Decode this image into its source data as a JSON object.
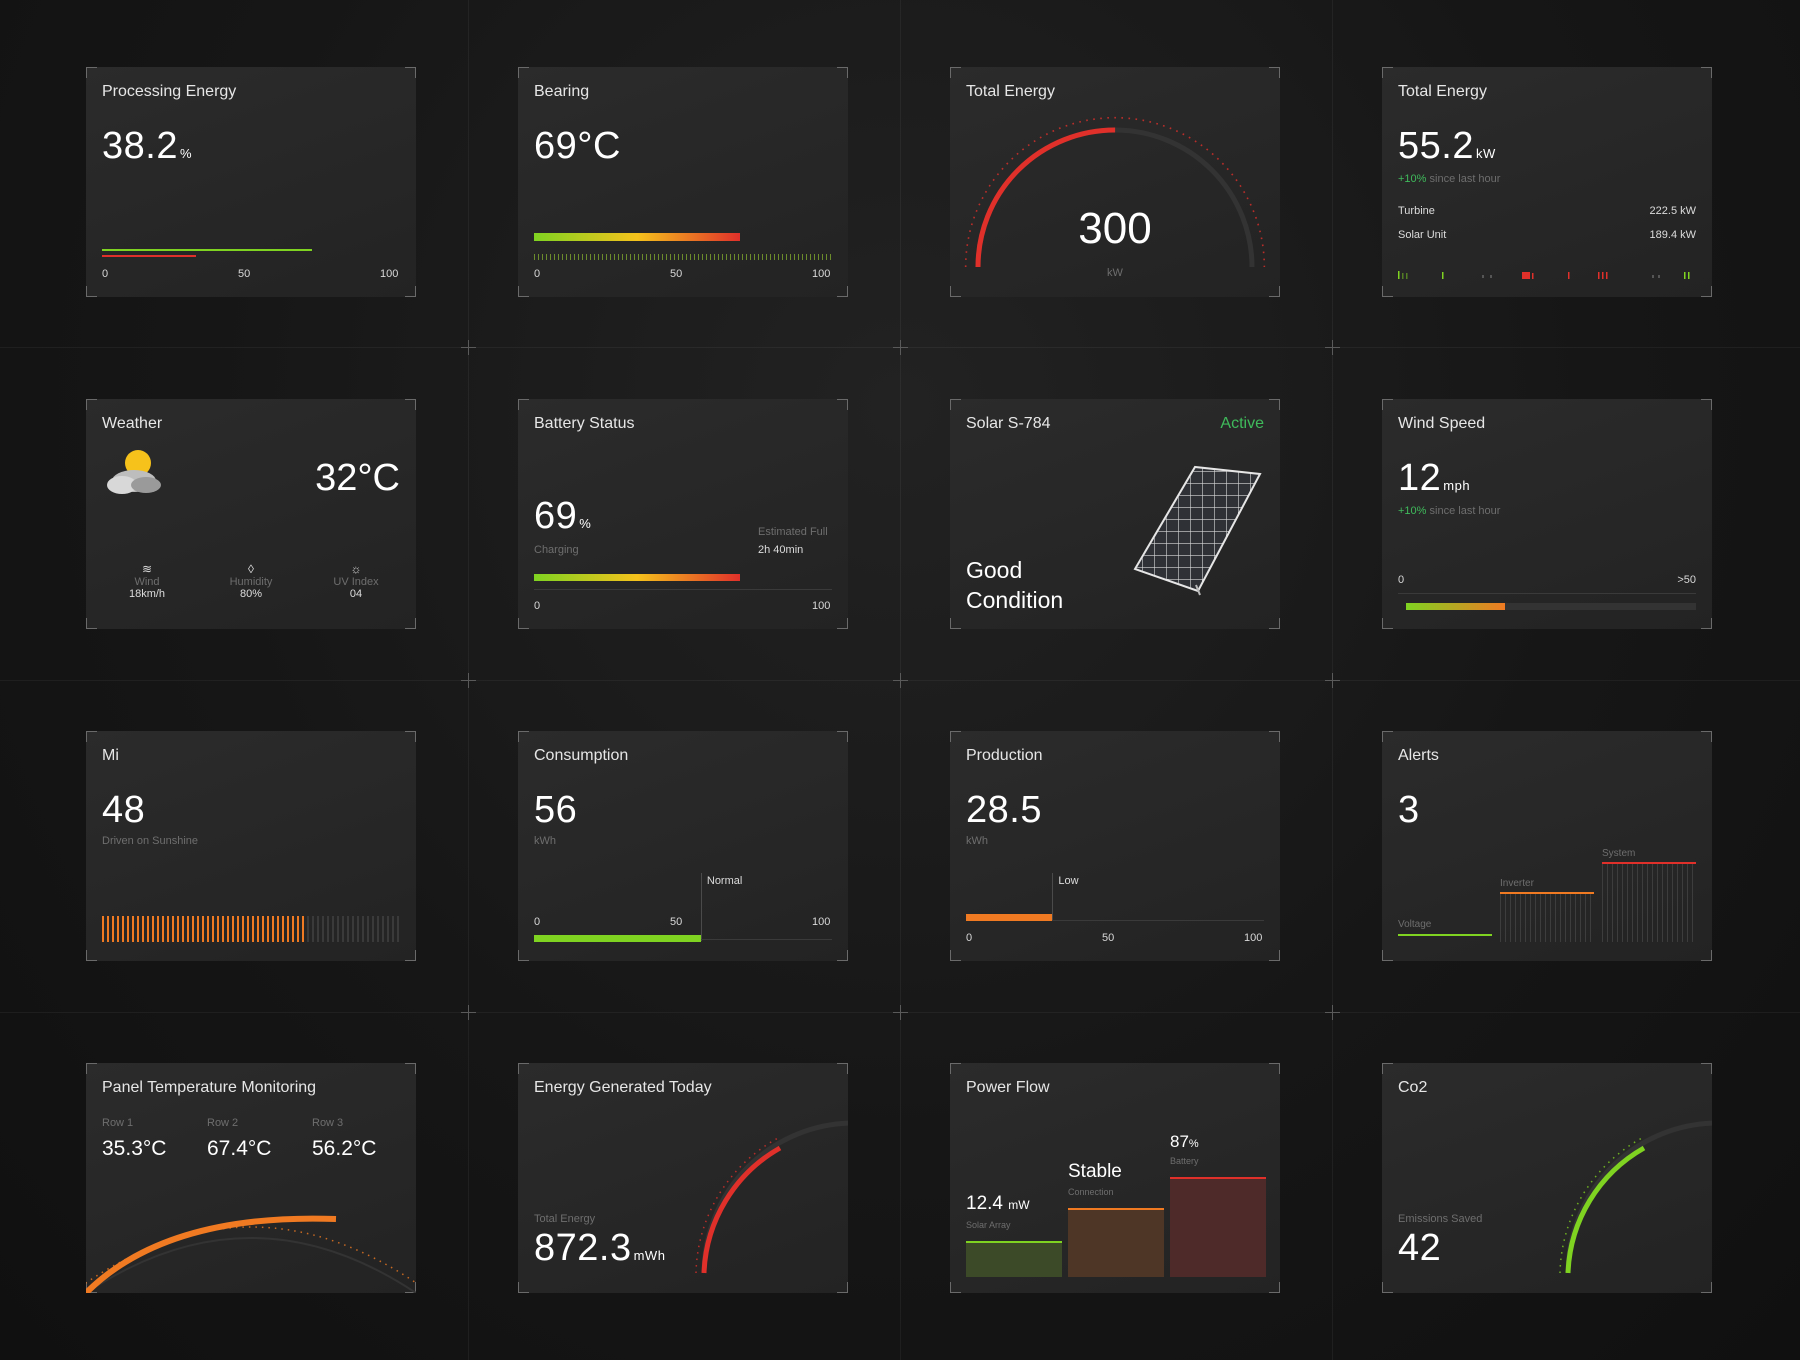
{
  "colors": {
    "accent_red": "#e0302a",
    "accent_green": "#7fd321",
    "accent_orange": "#f07a22",
    "status_green": "#3fba5b"
  },
  "processing": {
    "title": "Processing Energy",
    "value": "38.2",
    "unit": "%",
    "ticks": [
      "0",
      "50",
      "100"
    ],
    "green_level": 0.8,
    "red_level": 0.36
  },
  "bearing": {
    "title": "Bearing",
    "value": "69°C",
    "ticks": [
      "0",
      "50",
      "100"
    ],
    "level": 0.69
  },
  "gauge": {
    "title": "Total Energy",
    "value": "300",
    "unit": "kW",
    "level": 0.5
  },
  "total": {
    "title": "Total Energy",
    "value": "55.2",
    "unit": "kW",
    "change_pct": "+10",
    "change_unit": "%",
    "change_text": "since last hour",
    "rows": [
      {
        "label": "Turbine",
        "value": "222.5 kW"
      },
      {
        "label": "Solar Unit",
        "value": "189.4 kW"
      }
    ]
  },
  "weather": {
    "title": "Weather",
    "temp": "32°C",
    "icon": "partly-cloudy-icon",
    "stats": [
      {
        "icon": "wind-icon",
        "label": "Wind",
        "value": "18km/h"
      },
      {
        "icon": "humidity-icon",
        "label": "Humidity",
        "value": "80%"
      },
      {
        "icon": "sun-icon",
        "label": "UV Index",
        "value": "04"
      }
    ]
  },
  "battery": {
    "title": "Battery Status",
    "value": "69",
    "unit": "%",
    "sub": "Charging",
    "est_label": "Estimated Full",
    "est_value": "2h 40min",
    "ticks": [
      "0",
      "100"
    ],
    "level": 0.69
  },
  "solar": {
    "title": "Solar S-784",
    "status": "Active",
    "line1": "Good",
    "line2": "Condition",
    "icon": "solar-panel-icon"
  },
  "wind": {
    "title": "Wind Speed",
    "value": "12",
    "unit": "mph",
    "change_pct": "+10",
    "change_unit": "%",
    "change_text": "since last hour",
    "min": "0",
    "max": ">50",
    "level": 0.34
  },
  "mi": {
    "title": "Mi",
    "value": "48",
    "sub": "Driven on Sunshine",
    "level": 0.8
  },
  "consumption": {
    "title": "Consumption",
    "value": "56",
    "unit": "kWh",
    "marker": "Normal",
    "ticks": [
      "0",
      "50",
      "100"
    ],
    "level": 0.56
  },
  "production": {
    "title": "Production",
    "value": "28.5",
    "unit": "kWh",
    "marker": "Low",
    "ticks": [
      "0",
      "50",
      "100"
    ],
    "level": 0.29
  },
  "alerts": {
    "title": "Alerts",
    "value": "3",
    "bars": [
      {
        "label": "Voltage"
      },
      {
        "label": "Inverter"
      },
      {
        "label": "System"
      }
    ]
  },
  "panel_temp": {
    "title": "Panel Temperature Monitoring",
    "rows": [
      {
        "label": "Row 1",
        "value": "35.3°C"
      },
      {
        "label": "Row 2",
        "value": "67.4°C"
      },
      {
        "label": "Row 3",
        "value": "56.2°C"
      }
    ]
  },
  "energy_today": {
    "title": "Energy Generated Today",
    "sub": "Total Energy",
    "value": "872.3",
    "unit": "mWh"
  },
  "power_flow": {
    "title": "Power Flow",
    "items": [
      {
        "value": "12.4",
        "unit": "mW",
        "label": "Solar Array"
      },
      {
        "value": "Stable",
        "unit": "",
        "label": "Connection"
      },
      {
        "value": "87",
        "unit": "%",
        "label": "Battery"
      }
    ]
  },
  "co2": {
    "title": "Co2",
    "sub": "Emissions Saved",
    "value": "42"
  }
}
